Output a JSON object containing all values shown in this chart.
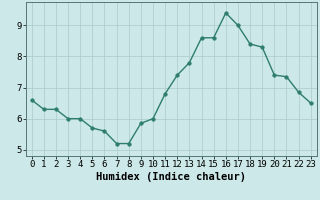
{
  "x": [
    0,
    1,
    2,
    3,
    4,
    5,
    6,
    7,
    8,
    9,
    10,
    11,
    12,
    13,
    14,
    15,
    16,
    17,
    18,
    19,
    20,
    21,
    22,
    23
  ],
  "y": [
    6.6,
    6.3,
    6.3,
    6.0,
    6.0,
    5.7,
    5.6,
    5.2,
    5.2,
    5.85,
    6.0,
    6.8,
    7.4,
    7.8,
    8.6,
    8.6,
    9.4,
    9.0,
    8.4,
    8.3,
    7.4,
    7.35,
    6.85,
    6.5
  ],
  "line_color": "#2e7d6e",
  "marker": "o",
  "marker_size": 2.5,
  "bg_color": "#cce8e8",
  "grid_color": "#aacccc",
  "xlabel": "Humidex (Indice chaleur)",
  "xlim": [
    -0.5,
    23.5
  ],
  "ylim": [
    4.8,
    9.75
  ],
  "yticks": [
    5,
    6,
    7,
    8,
    9
  ],
  "xticks": [
    0,
    1,
    2,
    3,
    4,
    5,
    6,
    7,
    8,
    9,
    10,
    11,
    12,
    13,
    14,
    15,
    16,
    17,
    18,
    19,
    20,
    21,
    22,
    23
  ],
  "xlabel_fontsize": 7.5,
  "tick_fontsize": 6.5,
  "line_width": 1.0
}
